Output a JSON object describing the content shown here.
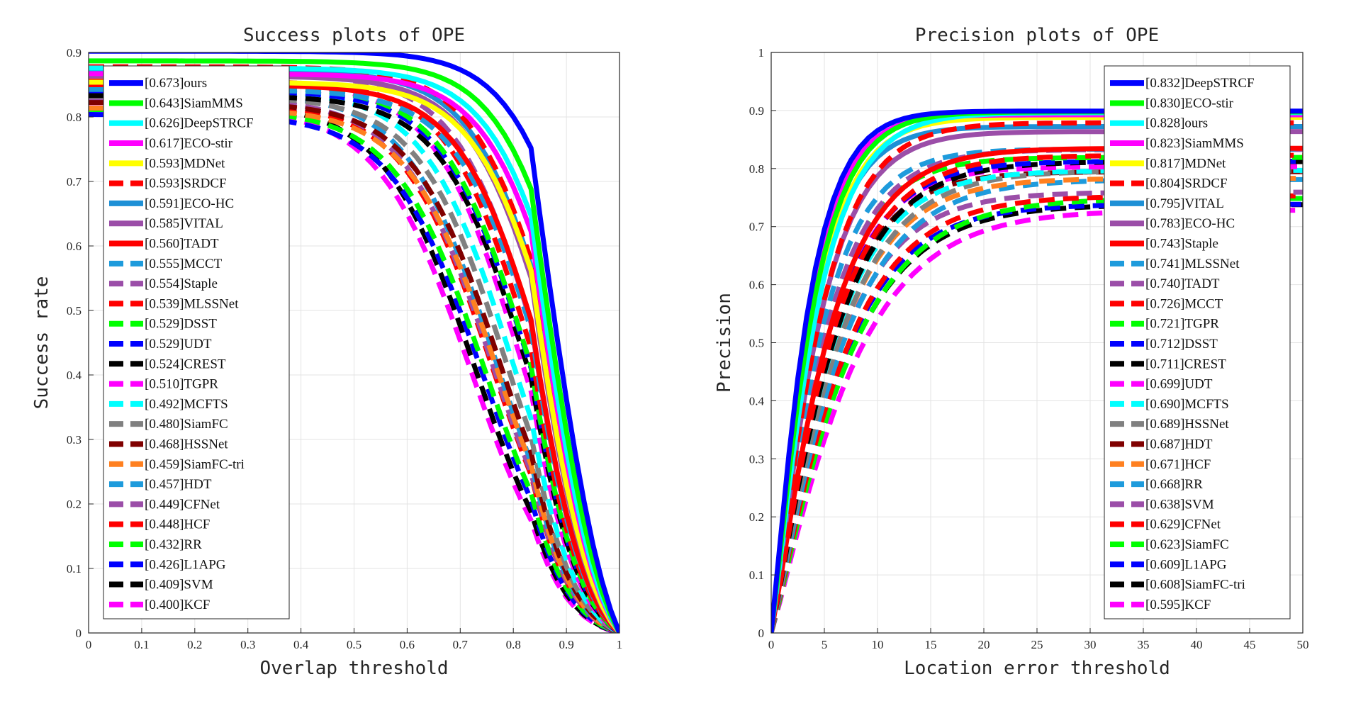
{
  "chart_data": [
    {
      "type": "line",
      "title": "Success plots of OPE",
      "xlabel": "Overlap threshold",
      "ylabel": "Success rate",
      "xlim": [
        0,
        1
      ],
      "ylim": [
        0,
        0.9
      ],
      "xticks": [
        "0",
        "0.1",
        "0.2",
        "0.3",
        "0.4",
        "0.5",
        "0.6",
        "0.7",
        "0.8",
        "0.9",
        "1"
      ],
      "yticks": [
        "0",
        "0.1",
        "0.2",
        "0.3",
        "0.4",
        "0.5",
        "0.6",
        "0.7",
        "0.8",
        "0.9"
      ],
      "grid": true,
      "legend_position": "left",
      "series": [
        {
          "name": "[0.673]ours",
          "color": "#0000ff",
          "dash": false
        },
        {
          "name": "[0.643]SiamMMS",
          "color": "#00ff00",
          "dash": false
        },
        {
          "name": "[0.626]DeepSTRCF",
          "color": "#00ffff",
          "dash": false
        },
        {
          "name": "[0.617]ECO-stir",
          "color": "#ff00ff",
          "dash": false
        },
        {
          "name": "[0.593]MDNet",
          "color": "#ffff00",
          "dash": false
        },
        {
          "name": "[0.593]SRDCF",
          "color": "#ff0000",
          "dash": true
        },
        {
          "name": "[0.591]ECO-HC",
          "color": "#1e90d6",
          "dash": false
        },
        {
          "name": "[0.585]VITAL",
          "color": "#9b4ea8",
          "dash": false
        },
        {
          "name": "[0.560]TADT",
          "color": "#ff0000",
          "dash": false
        },
        {
          "name": "[0.555]MCCT",
          "color": "#1e9bdc",
          "dash": true
        },
        {
          "name": "[0.554]Staple",
          "color": "#9b4ea8",
          "dash": true
        },
        {
          "name": "[0.539]MLSSNet",
          "color": "#ff0000",
          "dash": true
        },
        {
          "name": "[0.529]DSST",
          "color": "#00ff00",
          "dash": true
        },
        {
          "name": "[0.529]UDT",
          "color": "#0000ff",
          "dash": true
        },
        {
          "name": "[0.524]CREST",
          "color": "#000000",
          "dash": true
        },
        {
          "name": "[0.510]TGPR",
          "color": "#ff00ff",
          "dash": true
        },
        {
          "name": "[0.492]MCFTS",
          "color": "#00ffff",
          "dash": true
        },
        {
          "name": "[0.480]SiamFC",
          "color": "#808080",
          "dash": true
        },
        {
          "name": "[0.468]HSSNet",
          "color": "#800000",
          "dash": true
        },
        {
          "name": "[0.459]SiamFC-tri",
          "color": "#ff8020",
          "dash": true
        },
        {
          "name": "[0.457]HDT",
          "color": "#1e9bdc",
          "dash": true
        },
        {
          "name": "[0.449]CFNet",
          "color": "#9b4ea8",
          "dash": true
        },
        {
          "name": "[0.448]HCF",
          "color": "#ff0000",
          "dash": true
        },
        {
          "name": "[0.432]RR",
          "color": "#00ff00",
          "dash": true
        },
        {
          "name": "[0.426]L1APG",
          "color": "#0000ff",
          "dash": true
        },
        {
          "name": "[0.409]SVM",
          "color": "#000000",
          "dash": true
        },
        {
          "name": "[0.400]KCF",
          "color": "#ff00ff",
          "dash": true
        }
      ]
    },
    {
      "type": "line",
      "title": "Precision plots of OPE",
      "xlabel": "Location error threshold",
      "ylabel": "Precision",
      "xlim": [
        0,
        50
      ],
      "ylim": [
        0,
        1
      ],
      "xticks": [
        "0",
        "5",
        "10",
        "15",
        "20",
        "25",
        "30",
        "35",
        "40",
        "45",
        "50"
      ],
      "yticks": [
        "0",
        "0.1",
        "0.2",
        "0.3",
        "0.4",
        "0.5",
        "0.6",
        "0.7",
        "0.8",
        "0.9",
        "1"
      ],
      "grid": true,
      "legend_position": "right",
      "series": [
        {
          "name": "[0.832]DeepSTRCF",
          "color": "#0000ff",
          "dash": false
        },
        {
          "name": "[0.830]ECO-stir",
          "color": "#00ff00",
          "dash": false
        },
        {
          "name": "[0.828]ours",
          "color": "#00ffff",
          "dash": false
        },
        {
          "name": "[0.823]SiamMMS",
          "color": "#ff00ff",
          "dash": false
        },
        {
          "name": "[0.817]MDNet",
          "color": "#ffff00",
          "dash": false
        },
        {
          "name": "[0.804]SRDCF",
          "color": "#ff0000",
          "dash": true
        },
        {
          "name": "[0.795]VITAL",
          "color": "#1e90d6",
          "dash": false
        },
        {
          "name": "[0.783]ECO-HC",
          "color": "#9b4ea8",
          "dash": false
        },
        {
          "name": "[0.743]Staple",
          "color": "#ff0000",
          "dash": false
        },
        {
          "name": "[0.741]MLSSNet",
          "color": "#1e9bdc",
          "dash": true
        },
        {
          "name": "[0.740]TADT",
          "color": "#9b4ea8",
          "dash": true
        },
        {
          "name": "[0.726]MCCT",
          "color": "#ff0000",
          "dash": true
        },
        {
          "name": "[0.721]TGPR",
          "color": "#00ff00",
          "dash": true
        },
        {
          "name": "[0.712]DSST",
          "color": "#0000ff",
          "dash": true
        },
        {
          "name": "[0.711]CREST",
          "color": "#000000",
          "dash": true
        },
        {
          "name": "[0.699]UDT",
          "color": "#ff00ff",
          "dash": true
        },
        {
          "name": "[0.690]MCFTS",
          "color": "#00ffff",
          "dash": true
        },
        {
          "name": "[0.689]HSSNet",
          "color": "#808080",
          "dash": true
        },
        {
          "name": "[0.687]HDT",
          "color": "#800000",
          "dash": true
        },
        {
          "name": "[0.671]HCF",
          "color": "#ff8020",
          "dash": true
        },
        {
          "name": "[0.668]RR",
          "color": "#1e9bdc",
          "dash": true
        },
        {
          "name": "[0.638]SVM",
          "color": "#9b4ea8",
          "dash": true
        },
        {
          "name": "[0.629]CFNet",
          "color": "#ff0000",
          "dash": true
        },
        {
          "name": "[0.623]SiamFC",
          "color": "#00ff00",
          "dash": true
        },
        {
          "name": "[0.609]L1APG",
          "color": "#0000ff",
          "dash": true
        },
        {
          "name": "[0.608]SiamFC-tri",
          "color": "#000000",
          "dash": true
        },
        {
          "name": "[0.595]KCF",
          "color": "#ff00ff",
          "dash": true
        }
      ]
    }
  ]
}
